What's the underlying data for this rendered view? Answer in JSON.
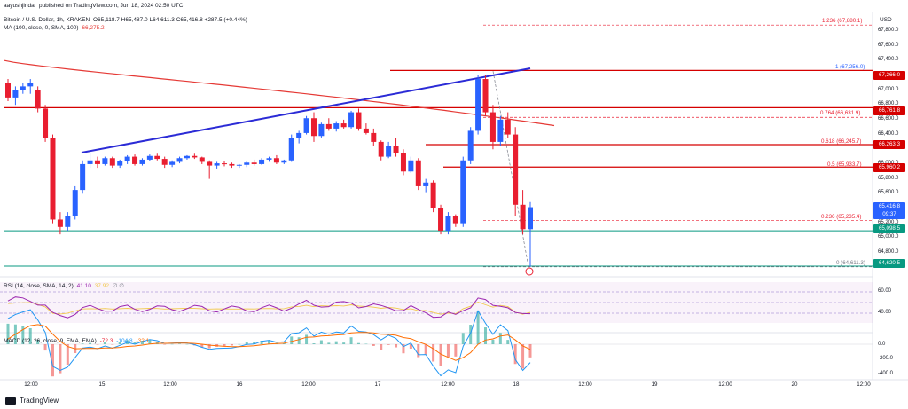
{
  "header": {
    "author": "aayushjindal",
    "published": "published on TradingView.com, Jun 18, 2024 02:50 UTC",
    "symbol": "Bitcoin / U.S. Dollar, 1h, KRAKEN",
    "ohlc": "O65,118.7  H65,487.0  L64,611.3  C65,416.8  +287.5 (+0.44%)",
    "ma_label": "MA (100, close, 0, SMA, 100)",
    "ma_value": "66,275.2",
    "currency": "USD"
  },
  "colors": {
    "up": "#2962ff",
    "down": "#e91e30",
    "ma": "#e53935",
    "trendline": "#2b2bd6",
    "support": "#089981",
    "resistance": "#d50000",
    "rsi": "#9c27b0",
    "rsi_ma": "#f2c94c",
    "macd": "#2196f3",
    "signal": "#ff6d00"
  },
  "price_axis": [
    "67,800.0",
    "67,600.0",
    "67,400.0",
    "67,000.0",
    "66,800.0",
    "66,600.0",
    "66,400.0",
    "66,000.0",
    "65,800.0",
    "65,600.0",
    "65,200.0",
    "65,000.0",
    "64,800.0"
  ],
  "price_tags": {
    "r1": "67,266.0",
    "r2": "66,761.8",
    "r3": "66,263.3",
    "r4": "65,960.2",
    "cur_price": "65,416.8",
    "cur_time": "09:37",
    "s1": "65,098.5",
    "s2": "64,620.5"
  },
  "fib": [
    {
      "label": "1.236 (67,880.1)",
      "level": 67880.1
    },
    {
      "label": "1 (67,256.0)",
      "level": 67256.0
    },
    {
      "label": "0.764 (66,631.9)",
      "level": 66631.9
    },
    {
      "label": "0.618 (66,245.7)",
      "level": 66245.7
    },
    {
      "label": "0.5 (65,933.7)",
      "level": 65933.7
    },
    {
      "label": "0.236 (65,235.4)",
      "level": 65235.4
    },
    {
      "label": "0 (64,611.3)",
      "level": 64611.3
    }
  ],
  "rsi": {
    "label": "RSI (14, close, SMA, 14, 2)",
    "value": "41.10",
    "value2": "37.92",
    "extra": "∅  ∅",
    "axis": [
      "60.00",
      "40.00"
    ]
  },
  "macd": {
    "label": "MACD (12, 26, close, 9, EMA, EMA)",
    "v1": "-72.3",
    "v2": "-104.8",
    "v3": "-32.1",
    "axis": [
      "0.0",
      "-200.0",
      "-400.0"
    ]
  },
  "time_axis": [
    "12:00",
    "15",
    "12:00",
    "16",
    "12:00",
    "17",
    "12:00",
    "18",
    "12:00",
    "19",
    "12:00",
    "20",
    "12:00"
  ],
  "footer": {
    "brand": "TradingView"
  },
  "chart_data": {
    "type": "candlestick",
    "title": "Bitcoin / U.S. Dollar, 1h, KRAKEN",
    "ylim": [
      64500,
      68050
    ],
    "candles": [
      [
        67100,
        67150,
        66850,
        66900
      ],
      [
        66900,
        67050,
        66800,
        67000
      ],
      [
        67000,
        67100,
        66950,
        67050
      ],
      [
        67050,
        67150,
        66950,
        67100
      ],
      [
        67000,
        67050,
        66700,
        66750
      ],
      [
        66750,
        66800,
        66300,
        66350
      ],
      [
        66350,
        66400,
        65200,
        65250
      ],
      [
        65250,
        65350,
        65050,
        65150
      ],
      [
        65150,
        65350,
        65100,
        65300
      ],
      [
        65300,
        65700,
        65250,
        65650
      ],
      [
        65650,
        66050,
        65600,
        66000
      ],
      [
        66000,
        66150,
        65950,
        66050
      ],
      [
        66050,
        66100,
        65950,
        66000
      ],
      [
        66000,
        66100,
        65980,
        66080
      ],
      [
        66080,
        66100,
        65950,
        65980
      ],
      [
        65980,
        66060,
        65950,
        66040
      ],
      [
        66040,
        66120,
        66000,
        66100
      ],
      [
        66100,
        66130,
        65980,
        66000
      ],
      [
        66000,
        66080,
        65980,
        66060
      ],
      [
        66060,
        66130,
        66040,
        66110
      ],
      [
        66110,
        66140,
        66050,
        66070
      ],
      [
        66070,
        66100,
        65950,
        65990
      ],
      [
        65990,
        66050,
        65960,
        66030
      ],
      [
        66030,
        66100,
        66010,
        66080
      ],
      [
        66080,
        66120,
        66060,
        66110
      ],
      [
        66110,
        66140,
        66070,
        66090
      ],
      [
        66090,
        66100,
        66000,
        66030
      ],
      [
        66030,
        66050,
        65800,
        65980
      ],
      [
        65980,
        66030,
        65940,
        66010
      ],
      [
        66010,
        66040,
        65970,
        66000
      ],
      [
        66000,
        66020,
        65950,
        65980
      ],
      [
        65980,
        66000,
        65950,
        65990
      ],
      [
        65990,
        66040,
        65960,
        66020
      ],
      [
        66020,
        66060,
        65980,
        66000
      ],
      [
        66000,
        66080,
        65990,
        66060
      ],
      [
        66060,
        66100,
        66030,
        66080
      ],
      [
        66080,
        66120,
        66000,
        66020
      ],
      [
        66020,
        66060,
        66000,
        66050
      ],
      [
        66050,
        66400,
        66030,
        66350
      ],
      [
        66350,
        66450,
        66280,
        66420
      ],
      [
        66420,
        66650,
        66400,
        66620
      ],
      [
        66620,
        66700,
        66300,
        66380
      ],
      [
        66380,
        66560,
        66360,
        66540
      ],
      [
        66540,
        66620,
        66450,
        66480
      ],
      [
        66480,
        66580,
        66440,
        66550
      ],
      [
        66550,
        66600,
        66480,
        66500
      ],
      [
        66500,
        66720,
        66480,
        66700
      ],
      [
        66700,
        66750,
        66450,
        66480
      ],
      [
        66480,
        66550,
        66400,
        66420
      ],
      [
        66420,
        66480,
        66250,
        66300
      ],
      [
        66300,
        66320,
        66050,
        66100
      ],
      [
        66100,
        66300,
        66080,
        66250
      ],
      [
        66250,
        66350,
        66100,
        66150
      ],
      [
        66150,
        66200,
        65850,
        65900
      ],
      [
        65900,
        66100,
        65880,
        66050
      ],
      [
        66050,
        66080,
        65650,
        65700
      ],
      [
        65700,
        65800,
        65620,
        65750
      ],
      [
        65750,
        65780,
        65350,
        65400
      ],
      [
        65400,
        65450,
        65050,
        65100
      ],
      [
        65100,
        65350,
        65050,
        65300
      ],
      [
        65300,
        65320,
        65150,
        65200
      ],
      [
        65200,
        66100,
        65150,
        66050
      ],
      [
        66050,
        66500,
        66000,
        66450
      ],
      [
        66450,
        67200,
        66400,
        67150
      ],
      [
        67150,
        67200,
        66650,
        66700
      ],
      [
        66700,
        66800,
        66200,
        66300
      ],
      [
        66300,
        66650,
        66250,
        66600
      ],
      [
        66600,
        66700,
        66350,
        66400
      ],
      [
        66400,
        66500,
        65300,
        65450
      ],
      [
        65450,
        65650,
        65050,
        65120
      ],
      [
        65120,
        65487,
        64611,
        65417
      ]
    ],
    "ma100_value": 66275.2,
    "support_levels": [
      65098.5,
      64620.5
    ],
    "resistance_levels": [
      67266.0,
      66761.8,
      66263.3,
      65960.2
    ]
  }
}
